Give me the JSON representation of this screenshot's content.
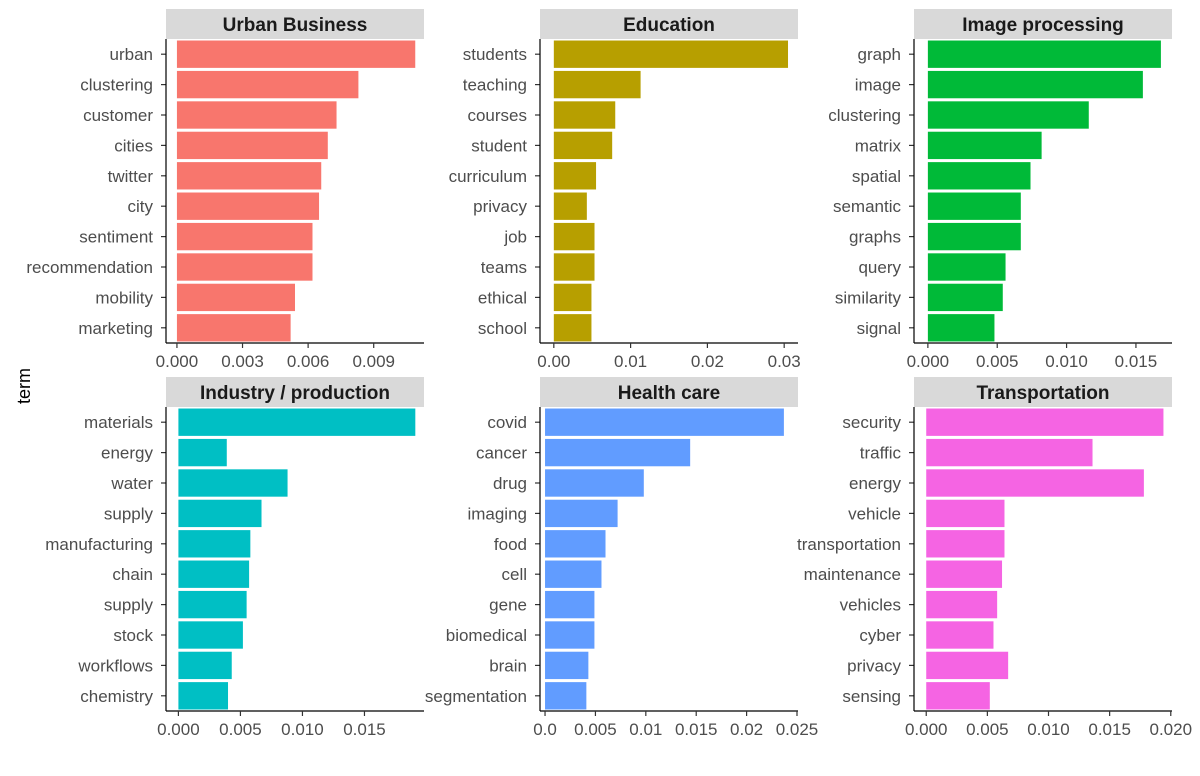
{
  "y_axis_label": "term",
  "chart_data": [
    {
      "type": "bar",
      "orientation": "horizontal",
      "title": "Urban Business",
      "color": "#F8766D",
      "categories": [
        "urban",
        "clustering",
        "customer",
        "cities",
        "twitter",
        "city",
        "sentiment",
        "recommendation",
        "mobility",
        "marketing"
      ],
      "values": [
        0.0109,
        0.0083,
        0.0073,
        0.0069,
        0.0066,
        0.0065,
        0.0062,
        0.0062,
        0.0054,
        0.0052
      ],
      "xlim": [
        -0.0005,
        0.0113
      ],
      "ticks": [
        0,
        0.003,
        0.006,
        0.009
      ],
      "tick_labels": [
        "0.000",
        "0.003",
        "0.006",
        "0.009"
      ],
      "xlabel": "",
      "ylabel": "term"
    },
    {
      "type": "bar",
      "orientation": "horizontal",
      "title": "Education",
      "color": "#B79F00",
      "categories": [
        "students",
        "teaching",
        "courses",
        "student",
        "curriculum",
        "privacy",
        "job",
        "teams",
        "ethical",
        "school"
      ],
      "values": [
        0.0305,
        0.0113,
        0.008,
        0.0076,
        0.0055,
        0.0043,
        0.0053,
        0.0053,
        0.0049,
        0.0049
      ],
      "xlim": [
        -0.0018,
        0.0318
      ],
      "ticks": [
        0,
        0.01,
        0.02,
        0.03
      ],
      "tick_labels": [
        "0.00",
        "0.01",
        "0.02",
        "0.03"
      ],
      "xlabel": "",
      "ylabel": "term"
    },
    {
      "type": "bar",
      "orientation": "horizontal",
      "title": "Image processing",
      "color": "#00BA38",
      "categories": [
        "graph",
        "image",
        "clustering",
        "matrix",
        "spatial",
        "semantic",
        "graphs",
        "query",
        "similarity",
        "signal"
      ],
      "values": [
        0.0168,
        0.0155,
        0.0116,
        0.0082,
        0.0074,
        0.0067,
        0.0067,
        0.0056,
        0.0054,
        0.0048
      ],
      "xlim": [
        -0.001,
        0.0176
      ],
      "ticks": [
        0,
        0.005,
        0.01,
        0.015
      ],
      "tick_labels": [
        "0.000",
        "0.005",
        "0.010",
        "0.015"
      ],
      "xlabel": "",
      "ylabel": "term"
    },
    {
      "type": "bar",
      "orientation": "horizontal",
      "title": "Industry / production",
      "color": "#00BFC4",
      "categories": [
        "materials",
        "energy",
        "water",
        "supply ",
        "manufacturing",
        "chain",
        "supply",
        "stock",
        "workflows",
        "chemistry"
      ],
      "values": [
        0.0191,
        0.0039,
        0.0088,
        0.0067,
        0.0058,
        0.0057,
        0.0055,
        0.0052,
        0.0043,
        0.004
      ],
      "xlim": [
        -0.001,
        0.0198
      ],
      "ticks": [
        0,
        0.005,
        0.01,
        0.015
      ],
      "tick_labels": [
        "0.000",
        "0.005",
        "0.010",
        "0.015"
      ],
      "xlabel": "",
      "ylabel": "term"
    },
    {
      "type": "bar",
      "orientation": "horizontal",
      "title": "Health care",
      "color": "#619CFF",
      "categories": [
        "covid",
        "cancer",
        "drug",
        "imaging",
        "food",
        "cell",
        "gene",
        "biomedical",
        "brain",
        "segmentation"
      ],
      "values": [
        0.0237,
        0.0144,
        0.0098,
        0.0072,
        0.006,
        0.0056,
        0.0049,
        0.0049,
        0.0043,
        0.0041
      ],
      "xlim": [
        -0.0005,
        0.0251
      ],
      "ticks": [
        0,
        0.005,
        0.01,
        0.015,
        0.02,
        0.025
      ],
      "tick_labels": [
        "0.0",
        "0.005",
        "0.01",
        "0.015",
        "0.02",
        "0.025"
      ],
      "xlabel": "",
      "ylabel": "term"
    },
    {
      "type": "bar",
      "orientation": "horizontal",
      "title": "Transportation",
      "color": "#F564E3",
      "categories": [
        "security",
        "traffic",
        "energy",
        "vehicle",
        "transportation",
        "maintenance",
        "vehicles",
        "cyber",
        "privacy",
        "sensing"
      ],
      "values": [
        0.0194,
        0.0136,
        0.0178,
        0.0064,
        0.0064,
        0.0062,
        0.0058,
        0.0055,
        0.0067,
        0.0052
      ],
      "xlim": [
        -0.001,
        0.0201
      ],
      "ticks": [
        0,
        0.005,
        0.01,
        0.015,
        0.02
      ],
      "tick_labels": [
        "0.000",
        "0.005",
        "0.010",
        "0.015",
        "0.020"
      ],
      "xlabel": "",
      "ylabel": "term"
    }
  ]
}
